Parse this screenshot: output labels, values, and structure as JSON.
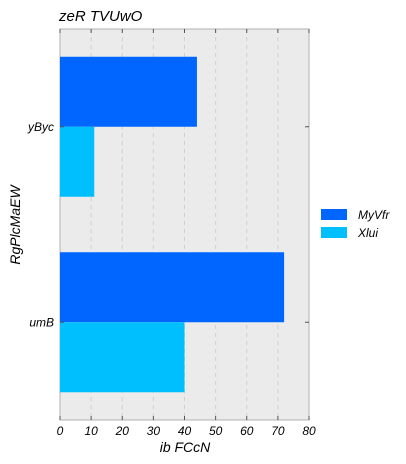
{
  "chart_data": {
    "type": "bar",
    "orientation": "horizontal",
    "title": "zeR TVUwO",
    "xlabel": "ib  FCcN",
    "ylabel": "RgPlcMaEW",
    "categories": [
      "yByc",
      "umB"
    ],
    "series": [
      {
        "name": "MyVfr",
        "values": [
          44,
          72
        ],
        "color": "#0066ff"
      },
      {
        "name": "Xlui",
        "values": [
          11,
          40
        ],
        "color": "#00bfff"
      }
    ],
    "xlim": [
      0,
      80
    ],
    "xticks": [
      0,
      10,
      20,
      30,
      40,
      50,
      60,
      70,
      80
    ],
    "grid": true,
    "legend_position": "right",
    "background": "#ebebeb"
  }
}
